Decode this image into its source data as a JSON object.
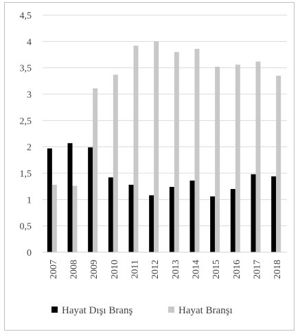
{
  "chart_data": {
    "type": "bar",
    "categories": [
      "2007",
      "2008",
      "2009",
      "2010",
      "2011",
      "2012",
      "2013",
      "2014",
      "2015",
      "2016",
      "2017",
      "2018"
    ],
    "series": [
      {
        "name": "Hayat Dışı Branş",
        "color": "#000000",
        "values": [
          1.97,
          2.07,
          1.99,
          1.42,
          1.28,
          1.08,
          1.24,
          1.36,
          1.06,
          1.2,
          1.48,
          1.44
        ]
      },
      {
        "name": "Hayat Branşı",
        "color": "#c8c8c8",
        "values": [
          1.28,
          1.26,
          3.11,
          3.37,
          3.92,
          4.0,
          3.8,
          3.86,
          3.52,
          3.56,
          3.62,
          3.35
        ]
      }
    ],
    "ylim": [
      0,
      4.5
    ],
    "yticks": [
      "0",
      "0,5",
      "1",
      "1,5",
      "2",
      "2,5",
      "3",
      "3,5",
      "4",
      "4,5"
    ],
    "ytick_values": [
      0,
      0.5,
      1,
      1.5,
      2,
      2.5,
      3,
      3.5,
      4,
      4.5
    ],
    "grid": true,
    "legend_position": "bottom",
    "title": "",
    "xlabel": "",
    "ylabel": ""
  }
}
